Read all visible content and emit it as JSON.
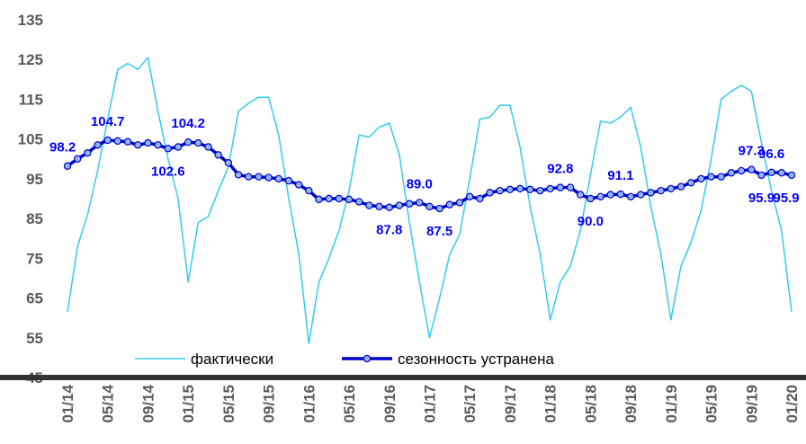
{
  "chart_data": {
    "type": "line",
    "categories": [
      "01/14",
      null,
      null,
      null,
      "05/14",
      null,
      null,
      null,
      "09/14",
      null,
      null,
      null,
      "01/15",
      null,
      null,
      null,
      "05/15",
      null,
      null,
      null,
      "09/15",
      null,
      null,
      null,
      "01/16",
      null,
      null,
      null,
      "05/16",
      null,
      null,
      null,
      "09/16",
      null,
      null,
      null,
      "01/17",
      null,
      null,
      null,
      "05/17",
      null,
      null,
      null,
      "09/17",
      null,
      null,
      null,
      "01/18",
      null,
      null,
      null,
      "05/18",
      null,
      null,
      null,
      "09/18",
      null,
      null,
      null,
      "01/19",
      null,
      null,
      null,
      "05/19",
      null,
      null,
      null,
      "09/19",
      null,
      null,
      null,
      "01/20"
    ],
    "series": [
      {
        "name": "фактически",
        "color": "#33ccee",
        "values": [
          61.5,
          78,
          86,
          97,
          110,
          122.5,
          124,
          122.5,
          125.5,
          112,
          100,
          90,
          69,
          84,
          85.5,
          92,
          98,
          112,
          114,
          115.5,
          115.5,
          106,
          90,
          76,
          53.5,
          69,
          75,
          82,
          92,
          106,
          105.5,
          108,
          109,
          101,
          84,
          69,
          55,
          65,
          76,
          81,
          95,
          110,
          110.5,
          113.5,
          113.5,
          103,
          88,
          76,
          59.5,
          69,
          73,
          82,
          96,
          109.5,
          109,
          110.5,
          113,
          103,
          88,
          76,
          59.5,
          73,
          79,
          87,
          100,
          115,
          117,
          118.5,
          117,
          104,
          92,
          82,
          61.5
        ]
      },
      {
        "name": "сезонность устранена",
        "color": "#0000cc",
        "marker_color": "#8fb8f0",
        "values": [
          98.2,
          100,
          101.5,
          103.5,
          104.7,
          104.5,
          104.3,
          103.5,
          104,
          103.5,
          102.6,
          103,
          104.2,
          104,
          103,
          101,
          99,
          96,
          95.5,
          95.5,
          95.3,
          95,
          94.5,
          93.5,
          92,
          89.8,
          90,
          90,
          89.8,
          89.2,
          88.3,
          88,
          87.8,
          88.3,
          88.7,
          89,
          88,
          87.5,
          88.5,
          89,
          90.5,
          90,
          91.5,
          92,
          92.3,
          92.5,
          92.3,
          92,
          92.5,
          92.8,
          92.8,
          91,
          90,
          90.5,
          91,
          91.1,
          90.5,
          91,
          91.5,
          92,
          92.5,
          93,
          94,
          95,
          95.5,
          95.5,
          96.5,
          97,
          97.3,
          95.9,
          96.6,
          96.5,
          95.9
        ],
        "value_labels": [
          "98.2",
          null,
          null,
          null,
          "104.7",
          null,
          null,
          null,
          null,
          null,
          "102.6",
          null,
          "104.2",
          null,
          null,
          null,
          null,
          null,
          null,
          null,
          null,
          null,
          null,
          null,
          null,
          null,
          null,
          null,
          null,
          null,
          null,
          null,
          "87.8",
          null,
          null,
          "89.0",
          null,
          "87.5",
          null,
          null,
          null,
          null,
          null,
          null,
          null,
          null,
          null,
          null,
          null,
          "92.8",
          null,
          null,
          "90.0",
          null,
          null,
          "91.1",
          null,
          null,
          null,
          null,
          null,
          null,
          null,
          null,
          null,
          null,
          null,
          null,
          "97.3",
          "95.9",
          "96.6",
          null,
          "95.9"
        ]
      }
    ],
    "ylim": [
      45,
      135
    ],
    "yticks": [
      45,
      55,
      65,
      75,
      85,
      95,
      105,
      115,
      125,
      135
    ],
    "grid": false,
    "legend": "bottom"
  }
}
